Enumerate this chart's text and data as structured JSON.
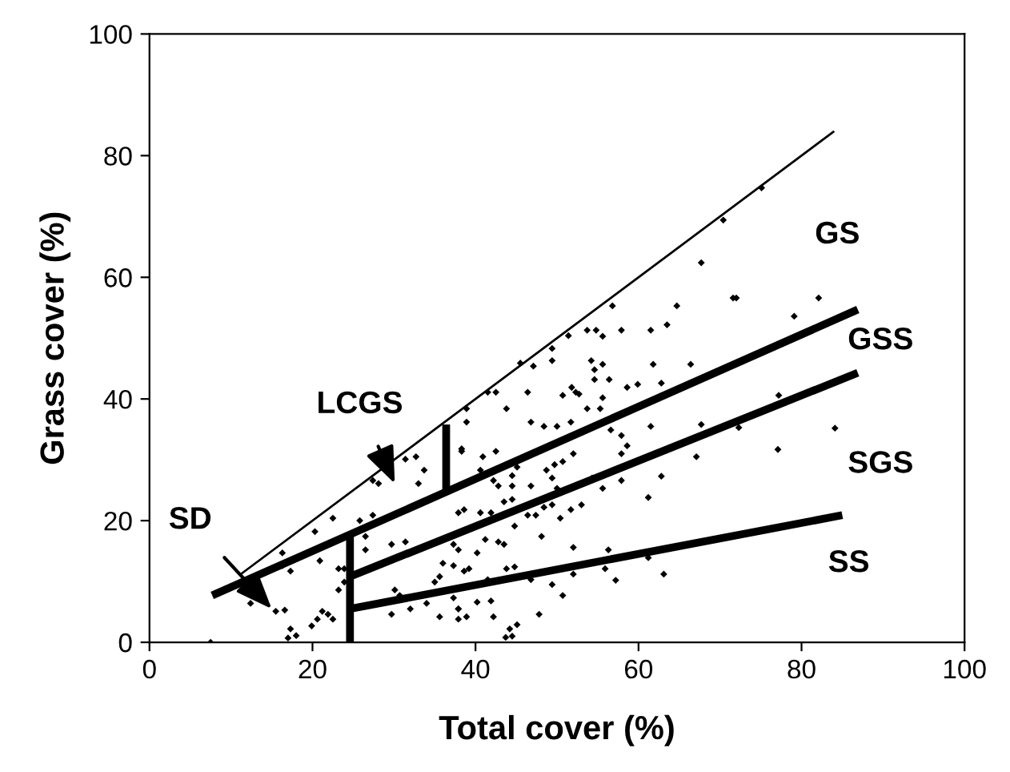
{
  "chart_data": {
    "type": "scatter",
    "xlabel": "Total cover (%)",
    "ylabel": "Grass cover (%)",
    "xlim": [
      0,
      100
    ],
    "ylim": [
      0,
      100
    ],
    "xticks": [
      0,
      20,
      40,
      60,
      80,
      100
    ],
    "yticks": [
      0,
      20,
      40,
      60,
      80,
      100
    ],
    "grid": false,
    "legend": false,
    "series": [
      {
        "marker": "diamond",
        "color": "#000000",
        "x": [
          7.5,
          12.4,
          15.5,
          16.6,
          17.0,
          18.0,
          19.9,
          20.6,
          21.2,
          21.9,
          22.5,
          23.2,
          23.9,
          23.2,
          23.9,
          22.5,
          20.3,
          20.9,
          17.3,
          16.3,
          25.8,
          27.4,
          26.5,
          26.5,
          29.7,
          31.4,
          30.1,
          30.7,
          29.7,
          32.0,
          34.0,
          35.6,
          35.0,
          35.6,
          36.0,
          31.4,
          32.7,
          33.0,
          33.7,
          27.4,
          28.1,
          38.3,
          37.9,
          37.3,
          37.9,
          37.9,
          16.3,
          17.3,
          38.9,
          42.5,
          46.4,
          50.7,
          52.3,
          55.6,
          38.9,
          43.8,
          46.8,
          48.4,
          50.0,
          51.7,
          53.7,
          55.3,
          38.3,
          40.9,
          42.5,
          56.6,
          57.9,
          61.5,
          67.7,
          72.3,
          57.9,
          58.6,
          67.1,
          52.0,
          50.7,
          49.7,
          48.7,
          45.1,
          40.6,
          42.2,
          42.8,
          44.5,
          44.5,
          46.8,
          49.4,
          50.0,
          54.3,
          55.6,
          57.9,
          62.8,
          61.2,
          38.6,
          40.6,
          41.9,
          43.5,
          44.5,
          46.4,
          47.4,
          48.4,
          49.4,
          50.4,
          51.7,
          53.0,
          44.8,
          41.2,
          42.8,
          43.5,
          40.2,
          37.9,
          37.3,
          38.6,
          39.2,
          48.1,
          52.0,
          56.3,
          61.2,
          63.1,
          57.2,
          55.9,
          52.0,
          46.8,
          41.5,
          43.8,
          44.8,
          49.4,
          50.7,
          37.3,
          37.9,
          38.9,
          40.2,
          41.9,
          42.2,
          47.8,
          44.2,
          45.1,
          41.5,
          47.1,
          49.4,
          49.4,
          51.4,
          53.7,
          54.8,
          55.6,
          56.8,
          57.9,
          61.5,
          63.5,
          64.7,
          67.7,
          71.6,
          70.4,
          54.2,
          54.6,
          55.6,
          54.6,
          56.4,
          61.8,
          66.4,
          51.8,
          52.7,
          58.6,
          59.9,
          62.8,
          45.5,
          75.1,
          82.1,
          79.1,
          72.0,
          77.2,
          84.1,
          77.1,
          43.7,
          44.5
        ],
        "values": [
          0,
          6.4,
          5.1,
          5.3,
          0.7,
          1.1,
          2.7,
          3.8,
          5.1,
          4.6,
          3.8,
          12.1,
          12.1,
          8.6,
          9.9,
          20.4,
          18.2,
          13.4,
          11.7,
          14.7,
          20,
          20.9,
          17.4,
          15.2,
          16.1,
          16.5,
          8.6,
          7.7,
          4.6,
          5.5,
          6.4,
          4.2,
          9.9,
          10.8,
          13.0,
          30.1,
          30.5,
          26.1,
          28.3,
          26.6,
          26.1,
          31.8,
          21.3,
          16.1,
          5.5,
          3.8,
          12.6,
          2.2,
          38.4,
          41.1,
          41.1,
          40.6,
          41.1,
          40.2,
          36.2,
          38.4,
          36.2,
          35.5,
          35.5,
          36.2,
          38.4,
          38.4,
          31.4,
          30.5,
          31.4,
          34.9,
          34.0,
          35.5,
          35.8,
          35.3,
          31.0,
          32.3,
          30.5,
          31.0,
          29.7,
          29.2,
          28.3,
          28.8,
          28.3,
          26.6,
          25.7,
          27.4,
          25.7,
          25.7,
          27.0,
          25.3,
          27.0,
          25.3,
          26.6,
          27.3,
          23.8,
          21.8,
          21.3,
          21.3,
          23.1,
          23.5,
          20.9,
          20.9,
          22.2,
          22.6,
          20.4,
          21.8,
          22.6,
          19.1,
          16.9,
          16.5,
          16.1,
          14.7,
          15.2,
          12.6,
          11.7,
          12.1,
          17.4,
          15.6,
          15.2,
          13.9,
          11.2,
          10.2,
          12.1,
          11.2,
          10.3,
          10.3,
          12.1,
          12.4,
          9.5,
          7.7,
          7.3,
          5.5,
          4.2,
          6.6,
          6.8,
          4.2,
          4.6,
          2.2,
          2.9,
          41.1,
          45.4,
          48.3,
          46.3,
          50.4,
          51.3,
          51.3,
          50.3,
          55.3,
          51.3,
          51.3,
          52.2,
          55.3,
          62.4,
          56.6,
          69.4,
          46.3,
          44.8,
          45.7,
          43.2,
          43.2,
          45.7,
          45.7,
          41.9,
          40.8,
          41.9,
          42.4,
          42.6,
          45.9,
          74.7,
          56.6,
          53.6,
          56.6,
          40.6,
          35.2,
          31.7,
          0.8,
          1.0
        ]
      },
      {
        "type": "line",
        "color": "#000000",
        "x": [
          11,
          84
        ],
        "values": [
          11,
          84
        ]
      },
      {
        "type": "line",
        "color": "#000000",
        "x": [
          7.7,
          86.9
        ],
        "values": [
          7.7,
          54.7
        ]
      },
      {
        "type": "line",
        "color": "#000000",
        "x": [
          24.6,
          86.9
        ],
        "values": [
          10.8,
          44.3
        ]
      },
      {
        "type": "line",
        "color": "#000000",
        "x": [
          24.6,
          85
        ],
        "values": [
          5.5,
          20.9
        ]
      },
      {
        "type": "line",
        "color": "#000000",
        "x": [
          24.6,
          24.6
        ],
        "values": [
          0,
          17.7
        ]
      },
      {
        "type": "line",
        "color": "#000000",
        "x": [
          36.4,
          36.4
        ],
        "values": [
          24.8,
          35.8
        ]
      }
    ],
    "annotations": [
      "LCGS",
      "SD",
      "GS",
      "GSS",
      "SGS",
      "SS"
    ]
  }
}
